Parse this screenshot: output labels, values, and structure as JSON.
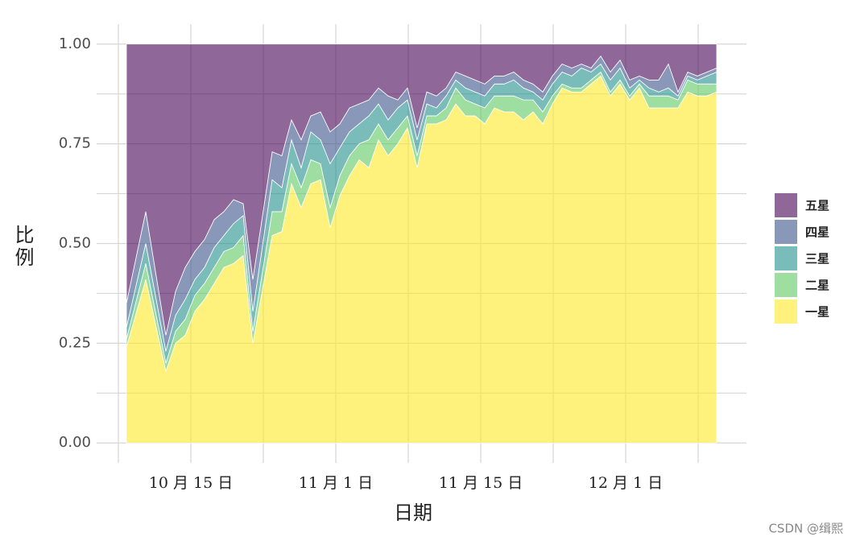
{
  "chart_data": {
    "type": "stacked_area",
    "xlabel": "日期",
    "ylabel": "比例",
    "watermark": "CSDN @缉熙",
    "x": [
      1,
      3.4,
      5.9,
      7.1,
      8.3,
      9.5,
      10.7,
      11.9,
      13.1,
      14.3,
      15.5,
      16.7,
      19.1,
      20.3,
      21.5,
      22.7,
      23.9,
      25.1,
      26.3,
      27.5,
      28.7,
      29.9,
      31.1,
      32.3,
      33.5,
      34.7,
      35.9,
      37.1,
      38.3,
      39.5,
      40.7,
      41.9,
      43.1,
      44.3,
      45.5,
      46.7,
      47.9,
      49.1,
      50.3,
      51.5,
      52.7,
      53.9,
      55.1,
      56.3,
      57.5,
      58.7,
      59.9,
      61.1,
      62.3,
      63.5,
      64.7,
      65.9,
      67.1,
      68.3,
      69.5,
      70.7,
      71.9,
      73.1,
      74.3
    ],
    "series": [
      {
        "name": "五星",
        "color": "#440154",
        "values": [
          0.65,
          0.42,
          0.73,
          0.62,
          0.56,
          0.52,
          0.49,
          0.44,
          0.42,
          0.39,
          0.4,
          0.59,
          0.27,
          0.28,
          0.19,
          0.24,
          0.18,
          0.17,
          0.22,
          0.2,
          0.16,
          0.15,
          0.14,
          0.11,
          0.13,
          0.14,
          0.11,
          0.21,
          0.12,
          0.13,
          0.11,
          0.07,
          0.08,
          0.09,
          0.1,
          0.08,
          0.08,
          0.07,
          0.09,
          0.1,
          0.12,
          0.08,
          0.05,
          0.06,
          0.05,
          0.06,
          0.03,
          0.07,
          0.04,
          0.09,
          0.08,
          0.09,
          0.09,
          0.05,
          0.12,
          0.07,
          0.08,
          0.07,
          0.06
        ]
      },
      {
        "name": "四星",
        "color": "#3b528b",
        "values": [
          0.06,
          0.08,
          0.04,
          0.06,
          0.08,
          0.07,
          0.07,
          0.07,
          0.06,
          0.06,
          0.03,
          0.08,
          0.07,
          0.08,
          0.05,
          0.07,
          0.04,
          0.07,
          0.08,
          0.06,
          0.06,
          0.05,
          0.04,
          0.04,
          0.06,
          0.02,
          0.03,
          0.03,
          0.03,
          0.03,
          0.02,
          0.02,
          0.03,
          0.03,
          0.03,
          0.02,
          0.02,
          0.02,
          0.02,
          0.02,
          0.02,
          0.02,
          0.02,
          0.02,
          0.01,
          0.01,
          0.02,
          0.02,
          0.02,
          0.02,
          0.01,
          0.02,
          0.03,
          0.06,
          0.01,
          0.01,
          0.01,
          0.01,
          0.01
        ]
      },
      {
        "name": "三星",
        "color": "#21908c",
        "values": [
          0.03,
          0.05,
          0.03,
          0.04,
          0.05,
          0.04,
          0.04,
          0.05,
          0.04,
          0.06,
          0.05,
          0.05,
          0.08,
          0.06,
          0.06,
          0.05,
          0.07,
          0.06,
          0.11,
          0.07,
          0.06,
          0.05,
          0.06,
          0.05,
          0.05,
          0.05,
          0.04,
          0.04,
          0.03,
          0.02,
          0.03,
          0.02,
          0.03,
          0.03,
          0.03,
          0.03,
          0.03,
          0.04,
          0.03,
          0.02,
          0.03,
          0.03,
          0.03,
          0.03,
          0.05,
          0.02,
          0.02,
          0.03,
          0.03,
          0.02,
          0.01,
          0.02,
          0.01,
          0.02,
          0.01,
          0.01,
          0.01,
          0.02,
          0.03
        ]
      },
      {
        "name": "二星",
        "color": "#5dc863",
        "values": [
          0.02,
          0.04,
          0.02,
          0.03,
          0.04,
          0.04,
          0.04,
          0.04,
          0.04,
          0.04,
          0.05,
          0.03,
          0.06,
          0.05,
          0.05,
          0.05,
          0.06,
          0.04,
          0.05,
          0.05,
          0.05,
          0.04,
          0.07,
          0.04,
          0.04,
          0.04,
          0.03,
          0.03,
          0.02,
          0.02,
          0.03,
          0.04,
          0.04,
          0.03,
          0.04,
          0.03,
          0.04,
          0.04,
          0.05,
          0.03,
          0.03,
          0.02,
          0.01,
          0.01,
          0.01,
          0.01,
          0.01,
          0.01,
          0.01,
          0.01,
          0.01,
          0.03,
          0.03,
          0.03,
          0.02,
          0.03,
          0.03,
          0.03,
          0.02
        ]
      },
      {
        "name": "一星",
        "color": "#fde725",
        "values": [
          0.24,
          0.41,
          0.18,
          0.25,
          0.27,
          0.33,
          0.36,
          0.4,
          0.44,
          0.45,
          0.47,
          0.25,
          0.52,
          0.53,
          0.65,
          0.59,
          0.65,
          0.66,
          0.54,
          0.62,
          0.67,
          0.71,
          0.69,
          0.76,
          0.72,
          0.75,
          0.79,
          0.69,
          0.8,
          0.8,
          0.81,
          0.85,
          0.82,
          0.82,
          0.8,
          0.84,
          0.83,
          0.83,
          0.81,
          0.83,
          0.8,
          0.85,
          0.89,
          0.88,
          0.88,
          0.9,
          0.92,
          0.87,
          0.9,
          0.86,
          0.89,
          0.84,
          0.84,
          0.84,
          0.84,
          0.88,
          0.87,
          0.87,
          0.88
        ]
      }
    ],
    "opacity": 0.6,
    "xlim": [
      -2.7,
      78
    ],
    "ylim": [
      -0.05,
      1.05
    ],
    "xticks": [
      {
        "value": 9,
        "label": "10 月 15 日"
      },
      {
        "value": 27,
        "label": "11 月 1 日"
      },
      {
        "value": 45,
        "label": "11 月 15 日"
      },
      {
        "value": 63,
        "label": "12 月 1 日"
      }
    ],
    "xminorticks": [
      0,
      18,
      36,
      54,
      72
    ],
    "yticks": [
      {
        "value": 0,
        "label": "0.00"
      },
      {
        "value": 0.25,
        "label": "0.25"
      },
      {
        "value": 0.5,
        "label": "0.50"
      },
      {
        "value": 0.75,
        "label": "0.75"
      },
      {
        "value": 1,
        "label": "1.00"
      }
    ],
    "yminorticks": [
      0.125,
      0.375,
      0.625,
      0.875
    ],
    "grid": true
  }
}
